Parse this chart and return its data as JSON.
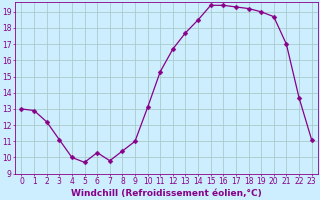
{
  "x": [
    0,
    1,
    2,
    3,
    4,
    5,
    6,
    7,
    8,
    9,
    10,
    11,
    12,
    13,
    14,
    15,
    16,
    17,
    18,
    19,
    20,
    21,
    22,
    23
  ],
  "y": [
    13.0,
    12.9,
    12.2,
    11.1,
    10.0,
    9.7,
    10.3,
    9.8,
    10.4,
    11.0,
    13.1,
    15.3,
    16.7,
    17.7,
    18.5,
    19.4,
    19.4,
    19.3,
    19.2,
    19.0,
    18.7,
    17.0,
    13.7,
    11.1
  ],
  "line_color": "#880088",
  "marker": "D",
  "markersize": 2.5,
  "linewidth": 0.9,
  "bg_color": "#cceeff",
  "grid_color": "#aacccc",
  "xlabel": "Windchill (Refroidissement éolien,°C)",
  "xlabel_color": "#880088",
  "xlabel_fontsize": 6.5,
  "ylim": [
    9,
    19.6
  ],
  "yticks": [
    9,
    10,
    11,
    12,
    13,
    14,
    15,
    16,
    17,
    18,
    19
  ],
  "xticks": [
    0,
    1,
    2,
    3,
    4,
    5,
    6,
    7,
    8,
    9,
    10,
    11,
    12,
    13,
    14,
    15,
    16,
    17,
    18,
    19,
    20,
    21,
    22,
    23
  ],
  "tick_fontsize": 5.5,
  "tick_color": "#880088",
  "spine_color": "#880088"
}
